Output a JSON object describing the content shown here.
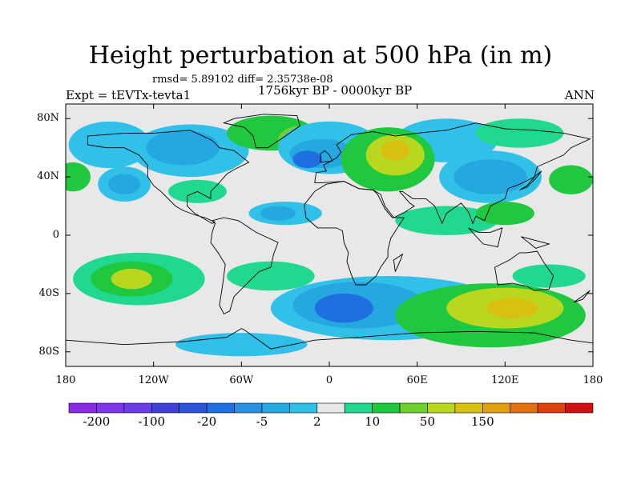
{
  "title": "Height perturbation at 500 hPa (in m)",
  "stats": "rmsd= 5.89102 diff= 2.35738e-08",
  "left_label": "Expt = tEVTx-tevta1",
  "center_label": "1756kyr BP - 0000kyr BP",
  "right_label": "ANN",
  "lat_labels": [
    "80N",
    "40N",
    "0",
    "40S",
    "80S"
  ],
  "lon_labels": [
    "180",
    "120W",
    "60W",
    "0",
    "60E",
    "120E",
    "180"
  ],
  "colorbar": {
    "colors": [
      "#8a2be2",
      "#7d37e8",
      "#6a3ee6",
      "#4040d8",
      "#2b55d8",
      "#1f6fe0",
      "#2a90e0",
      "#25a8e0",
      "#30c0e8",
      "#e8e8e8",
      "#20d890",
      "#20c840",
      "#70d030",
      "#b8d820",
      "#d8c010",
      "#e0a010",
      "#e07010",
      "#e04010",
      "#d01010"
    ],
    "labels": [
      "-200",
      "-100",
      "-20",
      "-5",
      "2",
      "10",
      "50",
      "150"
    ]
  },
  "map": {
    "lon_range": [
      -180,
      180
    ],
    "lat_range": [
      -90,
      90
    ],
    "background_color": "#e8e8e8",
    "blobs": [
      {
        "lon": -150,
        "lat": 62,
        "rlon": 28,
        "rlat": 16,
        "color": "#30c0e8"
      },
      {
        "lon": -95,
        "lat": 58,
        "rlon": 40,
        "rlat": 18,
        "color": "#30c0e8"
      },
      {
        "lon": -100,
        "lat": 60,
        "rlon": 25,
        "rlat": 12,
        "color": "#25a8e0"
      },
      {
        "lon": -175,
        "lat": 40,
        "rlon": 12,
        "rlat": 10,
        "color": "#20c840"
      },
      {
        "lon": -140,
        "lat": 35,
        "rlon": 18,
        "rlat": 12,
        "color": "#30c0e8"
      },
      {
        "lon": -140,
        "lat": 35,
        "rlon": 11,
        "rlat": 7,
        "color": "#25a8e0"
      },
      {
        "lon": -90,
        "lat": 30,
        "rlon": 20,
        "rlat": 8,
        "color": "#20d890"
      },
      {
        "lon": -40,
        "lat": 70,
        "rlon": 30,
        "rlat": 12,
        "color": "#20c840"
      },
      {
        "lon": -20,
        "lat": 65,
        "rlon": 15,
        "rlat": 10,
        "color": "#70d030"
      },
      {
        "lon": 0,
        "lat": 60,
        "rlon": 35,
        "rlat": 18,
        "color": "#30c0e8"
      },
      {
        "lon": -5,
        "lat": 56,
        "rlon": 22,
        "rlat": 10,
        "color": "#25a8e0"
      },
      {
        "lon": -15,
        "lat": 52,
        "rlon": 10,
        "rlat": 6,
        "color": "#1f6fe0"
      },
      {
        "lon": 80,
        "lat": 65,
        "rlon": 35,
        "rlat": 15,
        "color": "#30c0e8"
      },
      {
        "lon": 40,
        "lat": 52,
        "rlon": 32,
        "rlat": 22,
        "color": "#20c840"
      },
      {
        "lon": 45,
        "lat": 55,
        "rlon": 20,
        "rlat": 14,
        "color": "#b8d820"
      },
      {
        "lon": 45,
        "lat": 58,
        "rlon": 10,
        "rlat": 7,
        "color": "#d8c010"
      },
      {
        "lon": 110,
        "lat": 40,
        "rlon": 35,
        "rlat": 18,
        "color": "#30c0e8"
      },
      {
        "lon": 110,
        "lat": 40,
        "rlon": 25,
        "rlat": 12,
        "color": "#25a8e0"
      },
      {
        "lon": 165,
        "lat": 38,
        "rlon": 15,
        "rlat": 10,
        "color": "#20c840"
      },
      {
        "lon": 130,
        "lat": 70,
        "rlon": 30,
        "rlat": 10,
        "color": "#20d890"
      },
      {
        "lon": -30,
        "lat": 15,
        "rlon": 25,
        "rlat": 8,
        "color": "#30c0e8"
      },
      {
        "lon": -35,
        "lat": 15,
        "rlon": 12,
        "rlat": 5,
        "color": "#25a8e0"
      },
      {
        "lon": 80,
        "lat": 10,
        "rlon": 35,
        "rlat": 10,
        "color": "#20d890"
      },
      {
        "lon": 120,
        "lat": 15,
        "rlon": 20,
        "rlat": 8,
        "color": "#20c840"
      },
      {
        "lon": -130,
        "lat": -30,
        "rlon": 45,
        "rlat": 18,
        "color": "#20d890"
      },
      {
        "lon": -135,
        "lat": -30,
        "rlon": 28,
        "rlat": 12,
        "color": "#20c840"
      },
      {
        "lon": -135,
        "lat": -30,
        "rlon": 14,
        "rlat": 7,
        "color": "#b8d820"
      },
      {
        "lon": -40,
        "lat": -28,
        "rlon": 30,
        "rlat": 10,
        "color": "#20d890"
      },
      {
        "lon": 40,
        "lat": -50,
        "rlon": 80,
        "rlat": 22,
        "color": "#30c0e8"
      },
      {
        "lon": 20,
        "lat": -48,
        "rlon": 45,
        "rlat": 16,
        "color": "#25a8e0"
      },
      {
        "lon": 10,
        "lat": -50,
        "rlon": 20,
        "rlat": 10,
        "color": "#1f6fe0"
      },
      {
        "lon": 110,
        "lat": -55,
        "rlon": 65,
        "rlat": 22,
        "color": "#20c840"
      },
      {
        "lon": 120,
        "lat": -50,
        "rlon": 40,
        "rlat": 14,
        "color": "#b8d820"
      },
      {
        "lon": 125,
        "lat": -50,
        "rlon": 18,
        "rlat": 7,
        "color": "#d8c010"
      },
      {
        "lon": -60,
        "lat": -75,
        "rlon": 45,
        "rlat": 8,
        "color": "#30c0e8"
      },
      {
        "lon": 150,
        "lat": -28,
        "rlon": 25,
        "rlat": 8,
        "color": "#20d890"
      }
    ],
    "coastlines": [
      [
        [
          -165,
          68
        ],
        [
          -140,
          70
        ],
        [
          -120,
          70
        ],
        [
          -95,
          72
        ],
        [
          -80,
          65
        ],
        [
          -75,
          60
        ],
        [
          -65,
          58
        ],
        [
          -55,
          50
        ],
        [
          -65,
          45
        ],
        [
          -70,
          42
        ],
        [
          -76,
          35
        ],
        [
          -81,
          30
        ],
        [
          -81,
          25
        ],
        [
          -90,
          30
        ],
        [
          -97,
          27
        ],
        [
          -97,
          20
        ],
        [
          -92,
          15
        ],
        [
          -85,
          11
        ],
        [
          -80,
          8
        ],
        [
          -78,
          9
        ],
        [
          -85,
          12
        ],
        [
          -92,
          14
        ],
        [
          -100,
          17
        ],
        [
          -105,
          20
        ],
        [
          -110,
          25
        ],
        [
          -115,
          30
        ],
        [
          -120,
          34
        ],
        [
          -124,
          40
        ],
        [
          -124,
          48
        ],
        [
          -130,
          55
        ],
        [
          -140,
          60
        ],
        [
          -152,
          60
        ],
        [
          -165,
          62
        ],
        [
          -165,
          68
        ]
      ],
      [
        [
          -80,
          10
        ],
        [
          -72,
          12
        ],
        [
          -62,
          10
        ],
        [
          -50,
          2
        ],
        [
          -35,
          -5
        ],
        [
          -38,
          -13
        ],
        [
          -40,
          -22
        ],
        [
          -48,
          -25
        ],
        [
          -58,
          -35
        ],
        [
          -65,
          -42
        ],
        [
          -68,
          -52
        ],
        [
          -72,
          -54
        ],
        [
          -75,
          -48
        ],
        [
          -73,
          -35
        ],
        [
          -71,
          -20
        ],
        [
          -76,
          -12
        ],
        [
          -81,
          -5
        ],
        [
          -80,
          2
        ],
        [
          -78,
          8
        ],
        [
          -80,
          10
        ]
      ],
      [
        [
          -50,
          60
        ],
        [
          -42,
          60
        ],
        [
          -30,
          68
        ],
        [
          -20,
          75
        ],
        [
          -22,
          82
        ],
        [
          -45,
          83
        ],
        [
          -65,
          80
        ],
        [
          -72,
          77
        ],
        [
          -58,
          74
        ],
        [
          -52,
          68
        ],
        [
          -50,
          60
        ]
      ],
      [
        [
          -10,
          36
        ],
        [
          -9,
          43
        ],
        [
          -2,
          44
        ],
        [
          -4,
          48
        ],
        [
          5,
          53
        ],
        [
          8,
          57
        ],
        [
          5,
          62
        ],
        [
          15,
          69
        ],
        [
          30,
          71
        ],
        [
          45,
          68
        ],
        [
          60,
          70
        ],
        [
          80,
          72
        ],
        [
          100,
          77
        ],
        [
          120,
          73
        ],
        [
          140,
          72
        ],
        [
          160,
          70
        ],
        [
          178,
          66
        ],
        [
          165,
          60
        ],
        [
          160,
          55
        ],
        [
          142,
          47
        ],
        [
          140,
          40
        ],
        [
          130,
          35
        ],
        [
          122,
          32
        ],
        [
          120,
          25
        ],
        [
          110,
          20
        ],
        [
          106,
          10
        ],
        [
          100,
          13
        ],
        [
          98,
          8
        ],
        [
          95,
          16
        ],
        [
          90,
          22
        ],
        [
          80,
          15
        ],
        [
          77,
          8
        ],
        [
          72,
          20
        ],
        [
          66,
          25
        ],
        [
          57,
          25
        ],
        [
          50,
          30
        ],
        [
          48,
          30
        ],
        [
          55,
          22
        ],
        [
          58,
          20
        ],
        [
          52,
          16
        ],
        [
          44,
          12
        ],
        [
          38,
          20
        ],
        [
          35,
          28
        ],
        [
          30,
          31
        ],
        [
          20,
          32
        ],
        [
          10,
          37
        ],
        [
          -5,
          36
        ],
        [
          -10,
          36
        ]
      ],
      [
        [
          -17,
          21
        ],
        [
          -16,
          12
        ],
        [
          -8,
          5
        ],
        [
          5,
          5
        ],
        [
          9,
          3
        ],
        [
          10,
          -5
        ],
        [
          13,
          -12
        ],
        [
          12,
          -18
        ],
        [
          15,
          -27
        ],
        [
          18,
          -34
        ],
        [
          25,
          -34
        ],
        [
          32,
          -28
        ],
        [
          35,
          -22
        ],
        [
          40,
          -15
        ],
        [
          40,
          -10
        ],
        [
          42,
          -2
        ],
        [
          51,
          12
        ],
        [
          43,
          12
        ],
        [
          38,
          18
        ],
        [
          33,
          28
        ],
        [
          30,
          31
        ],
        [
          20,
          32
        ],
        [
          10,
          37
        ],
        [
          -2,
          35
        ],
        [
          -10,
          30
        ],
        [
          -17,
          21
        ]
      ],
      [
        [
          113,
          -22
        ],
        [
          115,
          -34
        ],
        [
          125,
          -33
        ],
        [
          135,
          -35
        ],
        [
          140,
          -38
        ],
        [
          150,
          -37
        ],
        [
          153,
          -28
        ],
        [
          146,
          -18
        ],
        [
          142,
          -11
        ],
        [
          135,
          -12
        ],
        [
          130,
          -12
        ],
        [
          123,
          -17
        ],
        [
          113,
          -22
        ]
      ],
      [
        [
          -180,
          -72
        ],
        [
          -140,
          -75
        ],
        [
          -100,
          -73
        ],
        [
          -70,
          -70
        ],
        [
          -60,
          -64
        ],
        [
          -58,
          -65
        ],
        [
          -40,
          -78
        ],
        [
          -10,
          -72
        ],
        [
          20,
          -70
        ],
        [
          60,
          -67
        ],
        [
          100,
          -66
        ],
        [
          140,
          -67
        ],
        [
          165,
          -72
        ],
        [
          180,
          -74
        ]
      ],
      [
        [
          -6,
          50
        ],
        [
          2,
          51
        ],
        [
          0,
          55
        ],
        [
          -3,
          58
        ],
        [
          -6,
          56
        ],
        [
          -6,
          50
        ]
      ],
      [
        [
          45,
          -25
        ],
        [
          49,
          -16
        ],
        [
          50,
          -13
        ],
        [
          44,
          -17
        ],
        [
          45,
          -25
        ]
      ],
      [
        [
          130,
          31
        ],
        [
          135,
          34
        ],
        [
          141,
          41
        ],
        [
          145,
          44
        ],
        [
          140,
          38
        ],
        [
          135,
          33
        ],
        [
          130,
          31
        ]
      ],
      [
        [
          95,
          5
        ],
        [
          105,
          -6
        ],
        [
          115,
          -8
        ],
        [
          118,
          5
        ],
        [
          110,
          2
        ],
        [
          102,
          2
        ],
        [
          95,
          5
        ]
      ],
      [
        [
          131,
          -1
        ],
        [
          150,
          -6
        ],
        [
          141,
          -9
        ],
        [
          131,
          -1
        ]
      ],
      [
        [
          167,
          -46
        ],
        [
          174,
          -41
        ],
        [
          178,
          -38
        ],
        [
          173,
          -44
        ],
        [
          167,
          -46
        ]
      ]
    ]
  }
}
